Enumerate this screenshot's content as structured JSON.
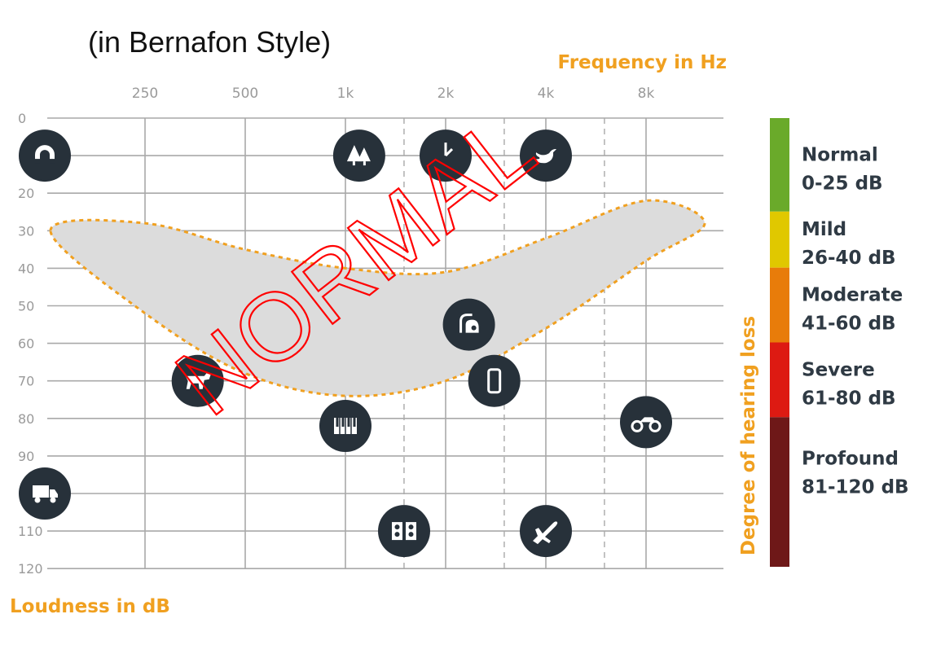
{
  "chart_data": {
    "type": "scatter",
    "subtitle": "(in Bernafon Style)",
    "x_title": "Frequency in Hz",
    "y_title": "Loudness in dB",
    "side_title": "Degree of hearing loss",
    "stamp": "NORMAL",
    "x_scale": "log2",
    "x_ticks": [
      {
        "label": "250",
        "value": 250
      },
      {
        "label": "500",
        "value": 500
      },
      {
        "label": "1k",
        "value": 1000
      },
      {
        "label": "2k",
        "value": 2000
      },
      {
        "label": "4k",
        "value": 4000
      },
      {
        "label": "8k",
        "value": 8000
      }
    ],
    "x_intermediate_lines": [
      1500,
      3000,
      6000
    ],
    "y_ticks": [
      0,
      10,
      20,
      30,
      40,
      50,
      60,
      70,
      80,
      90,
      100,
      110,
      120
    ],
    "y_range": [
      0,
      120
    ],
    "y_inverted": true,
    "grid": true,
    "points": [
      {
        "icon": "magnet-icon",
        "x": 125,
        "y": 10
      },
      {
        "icon": "trees-icon",
        "x": 1100,
        "y": 10
      },
      {
        "icon": "clock-icon",
        "x": 2000,
        "y": 10
      },
      {
        "icon": "bird-icon",
        "x": 4000,
        "y": 10
      },
      {
        "icon": "vacuum-icon",
        "x": 2350,
        "y": 55
      },
      {
        "icon": "phone-icon",
        "x": 2800,
        "y": 70
      },
      {
        "icon": "dog-icon",
        "x": 360,
        "y": 70
      },
      {
        "icon": "piano-icon",
        "x": 1000,
        "y": 82
      },
      {
        "icon": "motorcycle-icon",
        "x": 8000,
        "y": 81
      },
      {
        "icon": "truck-icon",
        "x": 125,
        "y": 100
      },
      {
        "icon": "speaker-icon",
        "x": 1500,
        "y": 110
      },
      {
        "icon": "airplane-icon",
        "x": 4000,
        "y": 110
      }
    ],
    "speech_banana": {
      "upper": [
        [
          130,
          30
        ],
        [
          250,
          28
        ],
        [
          500,
          35
        ],
        [
          1000,
          40
        ],
        [
          2000,
          41
        ],
        [
          4000,
          32
        ],
        [
          8000,
          22
        ],
        [
          12000,
          28
        ]
      ],
      "lower": [
        [
          12000,
          28
        ],
        [
          8000,
          38
        ],
        [
          4000,
          56
        ],
        [
          2000,
          70
        ],
        [
          1000,
          74
        ],
        [
          500,
          68
        ],
        [
          250,
          52
        ],
        [
          130,
          30
        ]
      ],
      "fill": "#dcdcdc",
      "border": "#f0a020"
    },
    "severity_scale": [
      {
        "name": "Normal",
        "range": "0-25 dB",
        "from": 0,
        "to": 25,
        "color": "#6aaa2a"
      },
      {
        "name": "Mild",
        "range": "26-40 dB",
        "from": 25,
        "to": 40,
        "color": "#e0c800"
      },
      {
        "name": "Moderate",
        "range": "41-60 dB",
        "from": 40,
        "to": 60,
        "color": "#e87c0a"
      },
      {
        "name": "Severe",
        "range": "61-80 dB",
        "from": 60,
        "to": 80,
        "color": "#dd1a12"
      },
      {
        "name": "Profound",
        "range": "81-120 dB",
        "from": 80,
        "to": 120,
        "color": "#6e1818"
      }
    ],
    "colors": {
      "accent": "#f0a020",
      "icon_bg": "#27313a",
      "stamp": "#ff0000",
      "grid": "#9a9a9a"
    }
  }
}
